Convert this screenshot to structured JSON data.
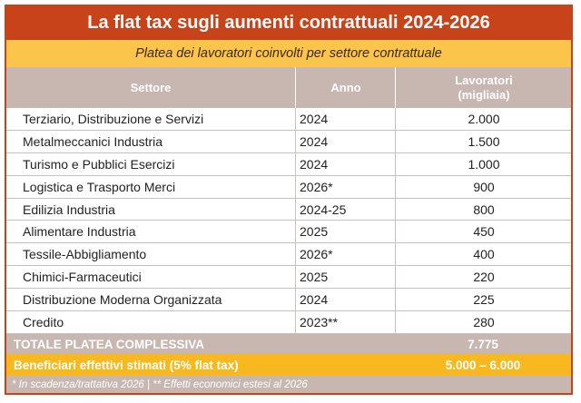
{
  "title": "La flat tax sugli aumenti contrattuali 2024-2026",
  "subtitle": "Platea dei lavoratori coinvolti per settore contrattuale",
  "table": {
    "headers": {
      "settore": "Settore",
      "anno": "Anno",
      "lavoratori_line1": "Lavoratori",
      "lavoratori_line2": "(migliaia)"
    },
    "rows": [
      {
        "settore": "Terziario, Distribuzione e Servizi",
        "anno": "2024",
        "lavoratori": "2.000"
      },
      {
        "settore": "Metalmeccanici Industria",
        "anno": "2024",
        "lavoratori": "1.500"
      },
      {
        "settore": "Turismo e Pubblici Esercizi",
        "anno": "2024",
        "lavoratori": "1.000"
      },
      {
        "settore": "Logistica e Trasporto Merci",
        "anno": "2026*",
        "lavoratori": "900"
      },
      {
        "settore": "Edilizia Industria",
        "anno": "2024-25",
        "lavoratori": "800"
      },
      {
        "settore": "Alimentare Industria",
        "anno": "2025",
        "lavoratori": "450"
      },
      {
        "settore": "Tessile-Abbigliamento",
        "anno": "2026*",
        "lavoratori": "400"
      },
      {
        "settore": "Chimici-Farmaceutici",
        "anno": "2025",
        "lavoratori": "220"
      },
      {
        "settore": "Distribuzione Moderna Organizzata",
        "anno": "2024",
        "lavoratori": "225"
      },
      {
        "settore": "Credito",
        "anno": "2023**",
        "lavoratori": "280"
      }
    ],
    "total": {
      "label": "TOTALE PLATEA COMPLESSIVA",
      "value": "7.775"
    },
    "beneficiari": {
      "label": "Beneficiari effettivi stimati (5% flat tax)",
      "value": "5.000 – 6.000"
    }
  },
  "note": "* In scadenza/trattativa 2026  |  ** Effetti economici estesi al 2026",
  "colors": {
    "title_bg": "#c9431a",
    "subtitle_bg": "#fbc44a",
    "header_bg": "#c7b7b0",
    "highlight_bg": "#f7b91f"
  }
}
